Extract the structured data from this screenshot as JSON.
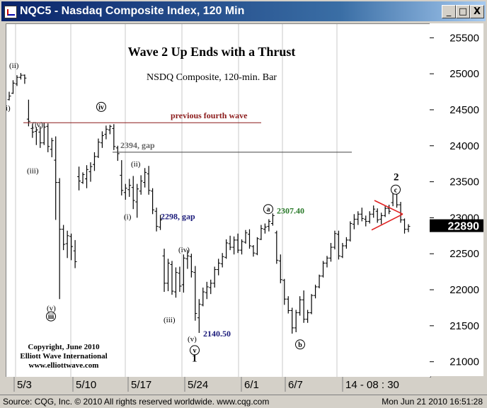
{
  "window": {
    "title": "NQC5 - Nasdaq Composite Index, 120 Min",
    "min_glyph": "_",
    "max_glyph": "□",
    "close_glyph": "X"
  },
  "status_bar": {
    "left": "Source: CQG, Inc. © 2010 All rights reserved worldwide. www.cqg.com",
    "right": "Mon Jun 21 2010 16:51:28"
  },
  "chart_data": {
    "type": "ohlc",
    "title": "Wave 2 Up Ends with a Thrust",
    "subtitle": "NSDQ Composite, 120-min. Bar",
    "ylim": [
      20800,
      25700
    ],
    "y_ticks": [
      21000,
      21500,
      22000,
      22500,
      23000,
      23500,
      24000,
      24500,
      25000,
      25500
    ],
    "y_tick_labels": [
      "21000",
      "21500",
      "22000",
      "22500",
      "23000",
      "23500",
      "24000",
      "24500",
      "25000",
      "25500"
    ],
    "last_price_label": "22890",
    "x_ticks": [
      "5/3",
      "5/10",
      "5/17",
      "5/24",
      "6/1",
      "6/7",
      "14 - 08 : 30"
    ],
    "copyright": [
      "Copyright, June 2010",
      "Elliott Wave International",
      "www.elliottwave.com"
    ],
    "levels": [
      {
        "label": "previous fourth wave",
        "value": 24330,
        "color": "#8b1a1a"
      },
      {
        "label": "2394, gap",
        "value": 23920,
        "color": "#444444"
      }
    ],
    "price_labels": [
      {
        "text": "2298, gap",
        "color": "#1a1a7a"
      },
      {
        "text": "2307.40",
        "color": "#2a7a2a"
      },
      {
        "text": "2140.50",
        "color": "#1a1a7a"
      }
    ],
    "wave_labels": [
      "(ii)",
      "i)",
      "(iv)",
      "(iii)",
      "iv",
      "(ii)",
      "(i)",
      "(v)",
      "iii",
      "(iv)",
      "(iii)",
      "(v)",
      "v",
      "1",
      "a",
      "b",
      "2",
      "c"
    ],
    "bars": [
      [
        24650,
        24760,
        24640,
        24700
      ],
      [
        24740,
        24920,
        24730,
        24880
      ],
      [
        24870,
        24990,
        24840,
        24960
      ],
      [
        24960,
        25020,
        24930,
        24990
      ],
      [
        24990,
        25000,
        24870,
        24950
      ],
      [
        24380,
        24650,
        24280,
        24350
      ],
      [
        24250,
        24310,
        24120,
        24200
      ],
      [
        24210,
        24270,
        24020,
        24230
      ],
      [
        24200,
        24280,
        23980,
        24050
      ],
      [
        24050,
        24330,
        24020,
        24270
      ],
      [
        24280,
        24320,
        23920,
        24000
      ],
      [
        23960,
        24120,
        23850,
        24080
      ],
      [
        23810,
        24140,
        22980,
        23500
      ],
      [
        23500,
        23560,
        21880,
        22850
      ],
      [
        22850,
        22910,
        22560,
        22640
      ],
      [
        22650,
        22830,
        22450,
        22760
      ],
      [
        22750,
        22790,
        22420,
        22610
      ],
      [
        22550,
        22700,
        22310,
        22400
      ],
      [
        23580,
        23720,
        23390,
        23520
      ],
      [
        23500,
        23640,
        23480,
        23610
      ],
      [
        23550,
        23740,
        23420,
        23680
      ],
      [
        23650,
        23780,
        23510,
        23720
      ],
      [
        23750,
        23920,
        23660,
        23860
      ],
      [
        23860,
        24110,
        23840,
        24060
      ],
      [
        24050,
        24210,
        23980,
        24150
      ],
      [
        24170,
        24290,
        24100,
        24240
      ],
      [
        24230,
        24300,
        24170,
        24280
      ],
      [
        24250,
        24310,
        23950,
        24000
      ],
      [
        23980,
        24010,
        23800,
        23900
      ],
      [
        23600,
        23810,
        23320,
        23390
      ],
      [
        23360,
        23480,
        23260,
        23420
      ],
      [
        23400,
        23550,
        23300,
        23460
      ],
      [
        23430,
        23590,
        23130,
        23250
      ],
      [
        23230,
        23480,
        23010,
        23410
      ],
      [
        23380,
        23600,
        23330,
        23520
      ],
      [
        23500,
        23700,
        23430,
        23640
      ],
      [
        23620,
        23730,
        23330,
        23390
      ],
      [
        23380,
        23420,
        23060,
        23120
      ],
      [
        23100,
        23150,
        22820,
        22890
      ],
      [
        22880,
        23050,
        22840,
        22980
      ],
      [
        22480,
        22580,
        21980,
        22100
      ],
      [
        22100,
        22440,
        21990,
        22380
      ],
      [
        22360,
        22410,
        21940,
        21990
      ],
      [
        21980,
        22320,
        21900,
        22250
      ],
      [
        22240,
        22330,
        21980,
        22060
      ],
      [
        22080,
        22500,
        21970,
        22450
      ],
      [
        22440,
        22560,
        22300,
        22480
      ],
      [
        22470,
        22510,
        22180,
        22260
      ],
      [
        22250,
        22340,
        21580,
        21680
      ],
      [
        21620,
        21880,
        21410,
        21810
      ],
      [
        21800,
        22040,
        21780,
        21980
      ],
      [
        21970,
        22120,
        21880,
        22050
      ],
      [
        22040,
        22150,
        21950,
        22100
      ],
      [
        22100,
        22330,
        22040,
        22290
      ],
      [
        22290,
        22440,
        22210,
        22380
      ],
      [
        22370,
        22520,
        22320,
        22470
      ],
      [
        22460,
        22710,
        22440,
        22660
      ],
      [
        22650,
        22760,
        22560,
        22600
      ],
      [
        22600,
        22750,
        22500,
        22700
      ],
      [
        22700,
        22790,
        22520,
        22560
      ],
      [
        22560,
        22710,
        22500,
        22680
      ],
      [
        22670,
        22840,
        22650,
        22800
      ],
      [
        22780,
        22850,
        22580,
        22620
      ],
      [
        22610,
        22630,
        22470,
        22520
      ],
      [
        22510,
        22740,
        22490,
        22720
      ],
      [
        22710,
        22910,
        22700,
        22860
      ],
      [
        22850,
        22930,
        22790,
        22880
      ],
      [
        22890,
        22990,
        22820,
        22960
      ],
      [
        22930,
        23070,
        22900,
        23040
      ],
      [
        22800,
        22830,
        22370,
        22420
      ],
      [
        22410,
        22500,
        22100,
        22150
      ],
      [
        22140,
        22160,
        21800,
        21880
      ],
      [
        21880,
        21920,
        21680,
        21720
      ],
      [
        21720,
        21760,
        21400,
        21480
      ],
      [
        21480,
        21730,
        21420,
        21690
      ],
      [
        21690,
        21920,
        21650,
        21870
      ],
      [
        21870,
        22000,
        21550,
        21600
      ],
      [
        21600,
        21730,
        21550,
        21690
      ],
      [
        21690,
        21950,
        21670,
        21930
      ],
      [
        21930,
        22080,
        21890,
        22050
      ],
      [
        22050,
        22220,
        22030,
        22200
      ],
      [
        22200,
        22410,
        22180,
        22380
      ],
      [
        22380,
        22480,
        22320,
        22450
      ],
      [
        22450,
        22660,
        22400,
        22600
      ],
      [
        22600,
        22830,
        22570,
        22790
      ],
      [
        22780,
        22830,
        22430,
        22480
      ],
      [
        22470,
        22660,
        22450,
        22620
      ],
      [
        22620,
        22740,
        22580,
        22700
      ],
      [
        22700,
        22960,
        22680,
        22930
      ],
      [
        22920,
        23060,
        22850,
        22990
      ],
      [
        22990,
        23100,
        22910,
        23060
      ],
      [
        23060,
        23150,
        22960,
        23000
      ],
      [
        22990,
        23040,
        22890,
        22960
      ],
      [
        22960,
        23100,
        22930,
        23060
      ],
      [
        23060,
        23180,
        23010,
        23130
      ],
      [
        23100,
        23140,
        22940,
        22980
      ],
      [
        22990,
        23080,
        22920,
        23040
      ],
      [
        23040,
        23170,
        23020,
        23140
      ],
      [
        23140,
        23190,
        23060,
        23100
      ],
      [
        23220,
        23400,
        23170,
        23350
      ],
      [
        23350,
        23460,
        23150,
        23190
      ],
      [
        23190,
        23230,
        22940,
        22980
      ],
      [
        22980,
        23000,
        22790,
        22850
      ],
      [
        22850,
        22920,
        22810,
        22890
      ]
    ]
  }
}
